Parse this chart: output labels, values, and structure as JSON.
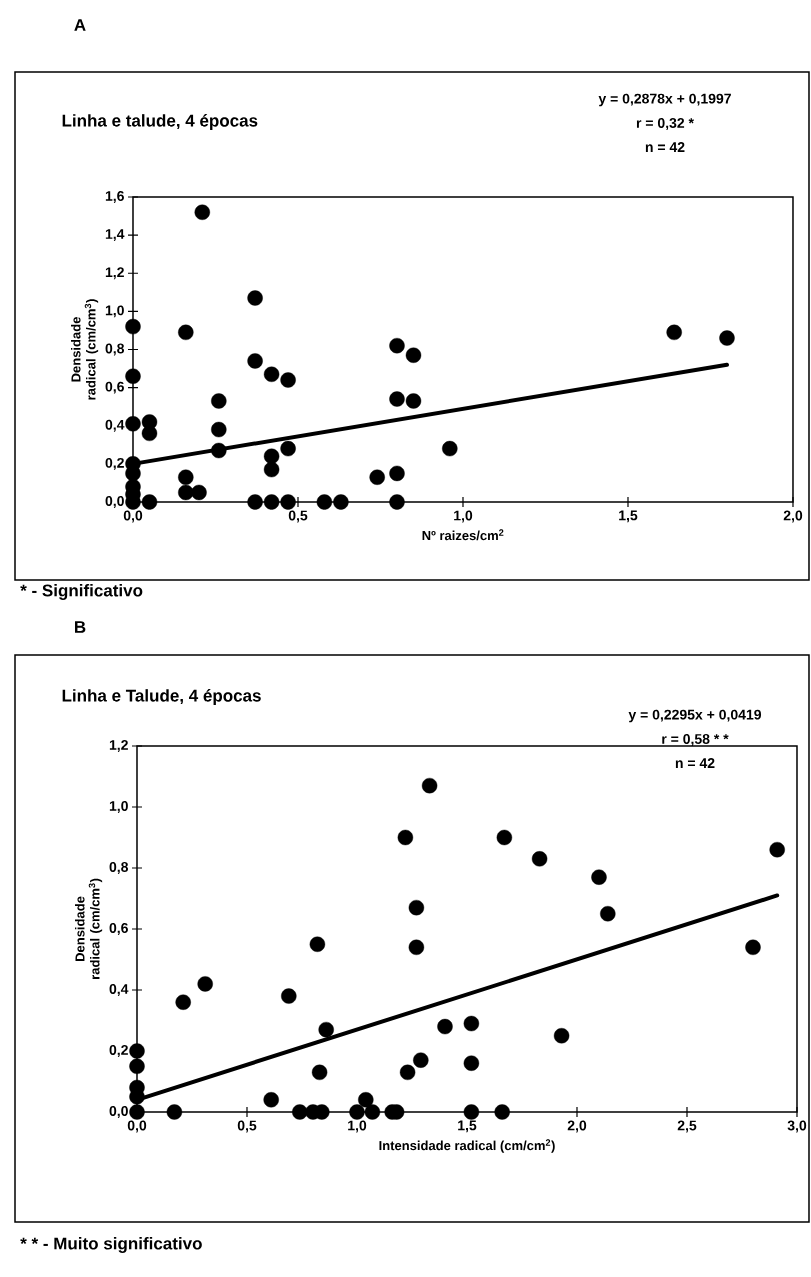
{
  "chart_data": [
    {
      "type": "scatter",
      "title": "Linha e talude, 4 épocas",
      "xlabel": "Nº raizes/cm$^{2}$",
      "ylabel": "Densidade radical (cm/cm$^{3}$)",
      "xlim": [
        0,
        2
      ],
      "ylim": [
        0,
        1.6
      ],
      "xticks": [
        {
          "value": 0,
          "label": "0,0"
        },
        {
          "value": 0.5,
          "label": "0,5"
        },
        {
          "value": 1,
          "label": "1,0"
        },
        {
          "value": 1.5,
          "label": "1,5"
        },
        {
          "value": 2,
          "label": "2,0"
        }
      ],
      "yticks": [
        {
          "value": 0,
          "label": "0,0"
        },
        {
          "value": 0.2,
          "label": "0,2"
        },
        {
          "value": 0.4,
          "label": "0,4"
        },
        {
          "value": 0.6,
          "label": "0,6"
        },
        {
          "value": 0.8,
          "label": "0,8"
        },
        {
          "value": 1,
          "label": "1,0"
        },
        {
          "value": 1.2,
          "label": "1,2"
        },
        {
          "value": 1.4,
          "label": "1,4"
        },
        {
          "value": 1.6,
          "label": "1,6"
        }
      ],
      "series": [
        {
          "type": "scatter",
          "color": "#000000",
          "x": [
            0.21,
            0,
            0,
            0,
            0,
            0,
            0,
            0,
            0,
            0.05,
            0.05,
            0.05,
            0.16,
            0.16,
            0.16,
            0.2,
            0.26,
            0.26,
            0.26,
            0.37,
            0.37,
            0.37,
            0.42,
            0.42,
            0.42,
            0.42,
            0.47,
            0.47,
            0.47,
            0.58,
            0.63,
            0.74,
            0.8,
            0.8,
            0.8,
            0.8,
            0.85,
            0.85,
            0.96,
            1.64,
            1.8
          ],
          "values": [
            1.52,
            0.92,
            0.66,
            0.41,
            0.2,
            0.15,
            0.08,
            0.04,
            0,
            0,
            0.42,
            0.36,
            0.89,
            0.13,
            0.05,
            0.05,
            0.53,
            0.38,
            0.27,
            1.07,
            0.74,
            0,
            0.67,
            0.24,
            0.17,
            0,
            0.64,
            0.28,
            0,
            0,
            0,
            0.13,
            0.15,
            0.82,
            0.54,
            0,
            0.77,
            0.53,
            0.28,
            0.89,
            0.86
          ]
        },
        {
          "type": "line",
          "color": "#000000",
          "x": [
            0,
            1.8
          ],
          "values": [
            0.2,
            0.72
          ]
        }
      ],
      "annotations": [
        "A",
        "y = 0,2878x + 0,1997",
        "r = 0,32 *",
        "n = 42",
        "* - Significativo"
      ]
    },
    {
      "type": "scatter",
      "title": "Linha e Talude, 4 épocas",
      "xlabel": "Intensidade radical (cm/cm$^{2}$)",
      "ylabel": "Densidade radical (cm/cm$^{3}$)",
      "xlim": [
        0,
        3
      ],
      "ylim": [
        0,
        1.2
      ],
      "xticks": [
        {
          "value": 0,
          "label": "0,0"
        },
        {
          "value": 0.5,
          "label": "0,5"
        },
        {
          "value": 1,
          "label": "1,0"
        },
        {
          "value": 1.5,
          "label": "1,5"
        },
        {
          "value": 2,
          "label": "2,0"
        },
        {
          "value": 2.5,
          "label": "2,5"
        },
        {
          "value": 3,
          "label": "3,0"
        }
      ],
      "yticks": [
        {
          "value": 0,
          "label": "0,0"
        },
        {
          "value": 0.2,
          "label": "0,2"
        },
        {
          "value": 0.4,
          "label": "0,4"
        },
        {
          "value": 0.6,
          "label": "0,6"
        },
        {
          "value": 0.8,
          "label": "0,8"
        },
        {
          "value": 1,
          "label": "1,0"
        },
        {
          "value": 1.2,
          "label": "1,2"
        }
      ],
      "series": [
        {
          "type": "scatter",
          "color": "#000000",
          "x": [
            0,
            0,
            0,
            0,
            0,
            0.17,
            0.21,
            0.31,
            0.61,
            0.69,
            0.74,
            0.8,
            0.82,
            0.83,
            0.84,
            0.86,
            1.0,
            1.04,
            1.07,
            1.16,
            1.18,
            1.22,
            1.23,
            1.27,
            1.27,
            1.29,
            1.33,
            1.4,
            1.52,
            1.52,
            1.52,
            1.67,
            1.66,
            1.83,
            1.93,
            2.1,
            2.14,
            2.8,
            2.91
          ],
          "values": [
            0.2,
            0.15,
            0.08,
            0.05,
            0,
            0,
            0.36,
            0.42,
            0.04,
            0.38,
            0,
            0,
            0.55,
            0.13,
            0,
            0.27,
            0,
            0.04,
            0,
            0,
            0,
            0.9,
            0.13,
            0.67,
            0.54,
            0.17,
            1.07,
            0.28,
            0.29,
            0.16,
            0,
            0.9,
            0,
            0.83,
            0.25,
            0.77,
            0.65,
            0.54,
            0.86
          ]
        },
        {
          "type": "line",
          "color": "#000000",
          "x": [
            0,
            2.91
          ],
          "values": [
            0.04,
            0.71
          ]
        }
      ],
      "annotations": [
        "B",
        "y = 0,2295x + 0,0419",
        "r = 0,58 * *",
        "n = 42",
        "* * - Muito significativo"
      ]
    }
  ]
}
